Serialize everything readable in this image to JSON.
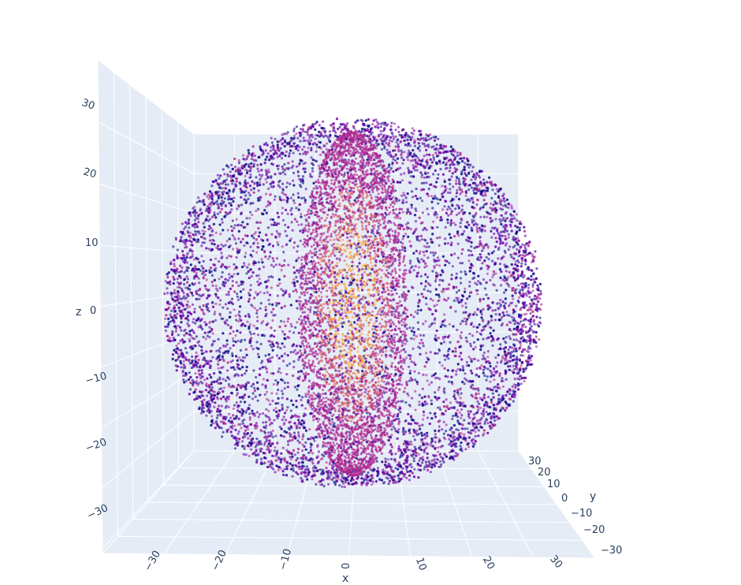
{
  "chart_data": {
    "type": "scatter3d",
    "title": "",
    "xlabel": "x",
    "ylabel": "y",
    "zlabel": "z",
    "xlim": [
      -35,
      35
    ],
    "ylim": [
      -35,
      35
    ],
    "zlim": [
      -35,
      35
    ],
    "x_ticks": [
      "−30",
      "−20",
      "−10",
      "0",
      "10",
      "20",
      "30"
    ],
    "y_ticks": [
      "30",
      "20",
      "10",
      "0",
      "−10",
      "−20",
      "−30"
    ],
    "z_ticks": [
      "30",
      "20",
      "10",
      "0",
      "−10",
      "−20",
      "−30"
    ],
    "grid": true,
    "legend": "none",
    "colorscale": [
      "#0d0887",
      "#6a00a8",
      "#b12a90",
      "#e16462",
      "#fca636"
    ],
    "point_opacity": 0.6,
    "description_values": {
      "outer_sphere_radius": 28,
      "inner_lens_half_width": 8,
      "inner_lens_half_height": 26
    }
  }
}
